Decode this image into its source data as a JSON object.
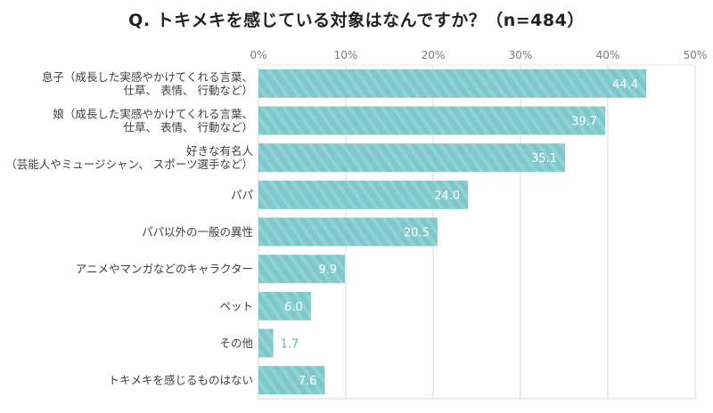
{
  "chart_data": {
    "type": "bar",
    "orientation": "horizontal",
    "title": "Q. トキメキを感じている対象はなんですか？（n=484）",
    "xlabel": "",
    "ylabel": "",
    "xlim": [
      0,
      50
    ],
    "ticks": [
      0,
      10,
      20,
      30,
      40,
      50
    ],
    "tick_labels": [
      "0%",
      "10%",
      "20%",
      "30%",
      "40%",
      "50%"
    ],
    "grid": true,
    "legend": "none",
    "bar_color": "#7ec8cb",
    "stripe_color": "#93d2d4",
    "label_color_inside": "#ffffff",
    "label_color_outside": "#5bb5ba",
    "categories": [
      [
        "息子（成長した実感やかけてくれる言葉、",
        "仕草、 表情、 行動など）"
      ],
      [
        "娘（成長した実感やかけてくれる言葉、",
        "仕草、 表情、 行動など）"
      ],
      [
        "好きな有名人",
        "（芸能人やミュージシャン、 スポーツ選手など）"
      ],
      [
        "パパ"
      ],
      [
        "パパ以外の一般の異性"
      ],
      [
        "アニメやマンガなどのキャラクター"
      ],
      [
        "ペット"
      ],
      [
        "その他"
      ],
      [
        "トキメキを感じるものはない"
      ]
    ],
    "values": [
      44.4,
      39.7,
      35.1,
      24.0,
      20.5,
      9.9,
      6.0,
      1.7,
      7.6
    ],
    "value_labels": [
      "44.4",
      "39.7",
      "35.1",
      "24.0",
      "20.5",
      "9.9",
      "6.0",
      "1.7",
      "7.6"
    ]
  }
}
